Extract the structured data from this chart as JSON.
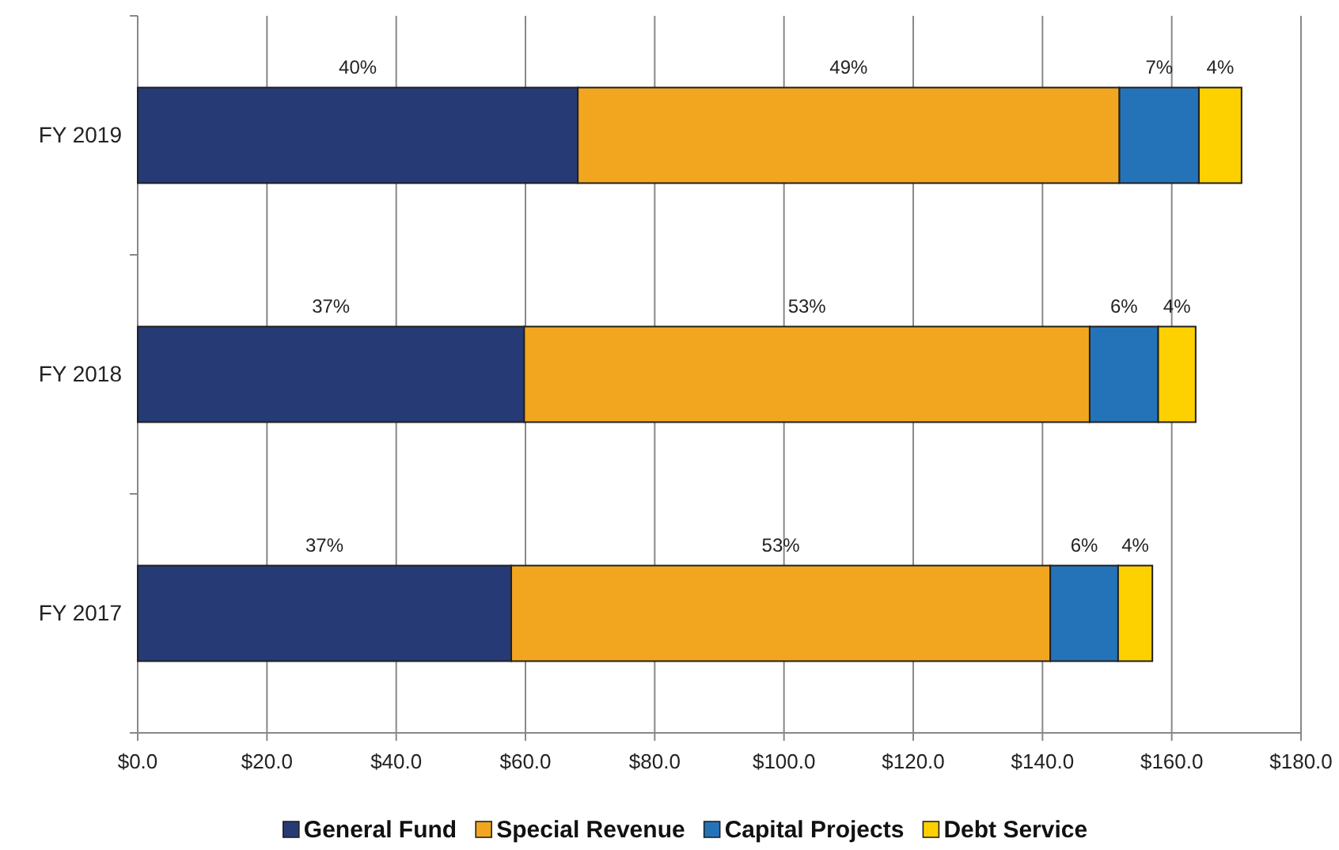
{
  "chart_data": {
    "type": "bar",
    "orientation": "horizontal",
    "stacked": true,
    "categories": [
      "FY 2019",
      "FY 2018",
      "FY 2017"
    ],
    "series": [
      {
        "name": "General Fund",
        "color": "#263a75",
        "values": [
          68.1,
          59.8,
          57.8
        ]
      },
      {
        "name": "Special Revenue",
        "color": "#f2a61f",
        "values": [
          83.8,
          87.5,
          83.4
        ]
      },
      {
        "name": "Capital Projects",
        "color": "#2473b9",
        "values": [
          12.3,
          10.6,
          10.5
        ]
      },
      {
        "name": "Debt Service",
        "color": "#fdd000",
        "values": [
          6.6,
          5.8,
          5.3
        ]
      }
    ],
    "annotations": [
      "40%",
      "49%",
      "7%",
      "4%",
      "37%",
      "53%",
      "6%",
      "4%",
      "37%",
      "53%",
      "6%",
      "4%"
    ],
    "xlim": [
      0,
      180
    ],
    "xticks": [
      {
        "value": 0,
        "label": "$0.0"
      },
      {
        "value": 20,
        "label": "$20.0"
      },
      {
        "value": 40,
        "label": "$40.0"
      },
      {
        "value": 60,
        "label": "$60.0"
      },
      {
        "value": 80,
        "label": "$80.0"
      },
      {
        "value": 100,
        "label": "$100.0"
      },
      {
        "value": 120,
        "label": "$120.0"
      },
      {
        "value": 140,
        "label": "$140.0"
      },
      {
        "value": 160,
        "label": "$160.0"
      },
      {
        "value": 180,
        "label": "$180.0"
      }
    ],
    "grid": "x",
    "legend": "bottom"
  }
}
